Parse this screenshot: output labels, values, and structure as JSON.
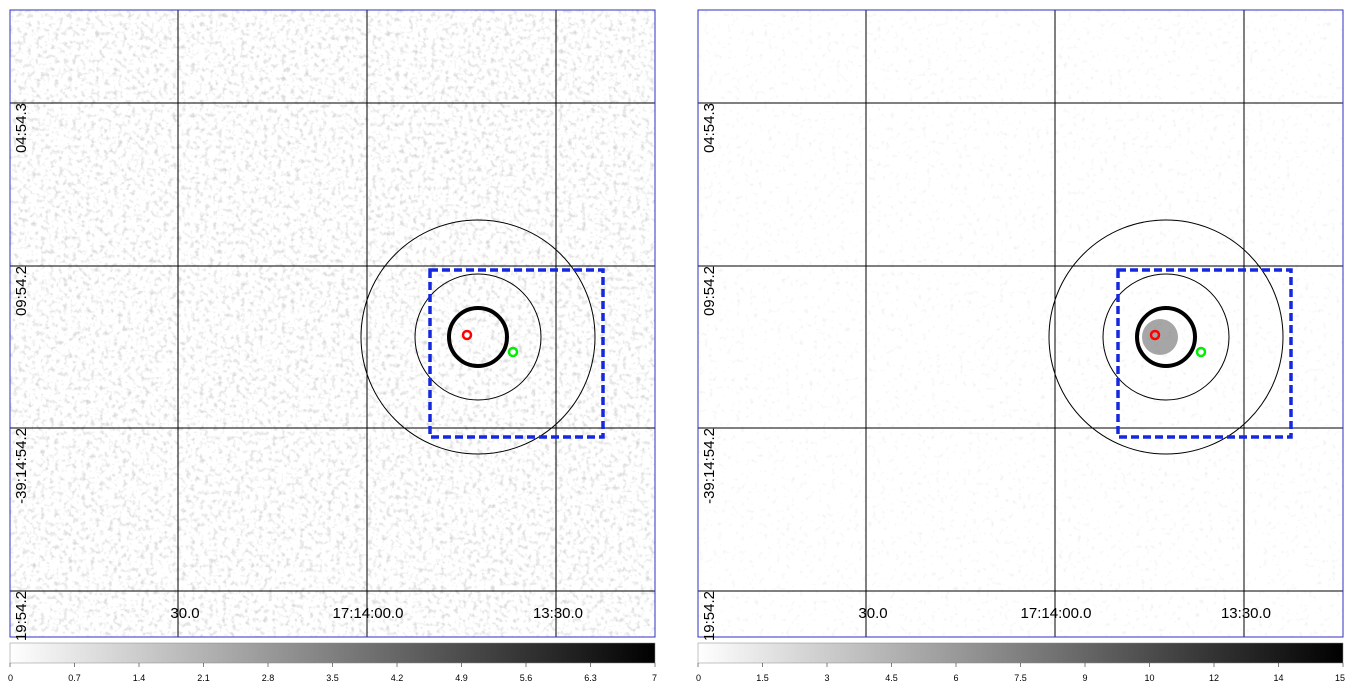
{
  "panels": [
    {
      "x_labels": [
        "30.0",
        "17:14:00.0",
        "13:30.0"
      ],
      "y_labels": [
        "04:54.3",
        "09:54.2",
        "-39:14:54.2",
        "19:54.2"
      ],
      "colorbar": {
        "ticks": [
          0,
          0.7,
          1.4,
          2.1,
          2.8,
          3.5,
          4.2,
          4.9,
          5.6,
          6.3,
          7
        ]
      }
    },
    {
      "x_labels": [
        "30.0",
        "17:14:00.0",
        "13:30.0"
      ],
      "y_labels": [
        "04:54.3",
        "09:54.2",
        "-39:14:54.2",
        "19:54.2"
      ],
      "colorbar": {
        "ticks": [
          0,
          1.5,
          3,
          4.5,
          6,
          7.5,
          9,
          {
            "value": 10.5,
            "label": "10"
          },
          12,
          {
            "value": 13.5,
            "label": "14"
          },
          15
        ]
      }
    }
  ]
}
